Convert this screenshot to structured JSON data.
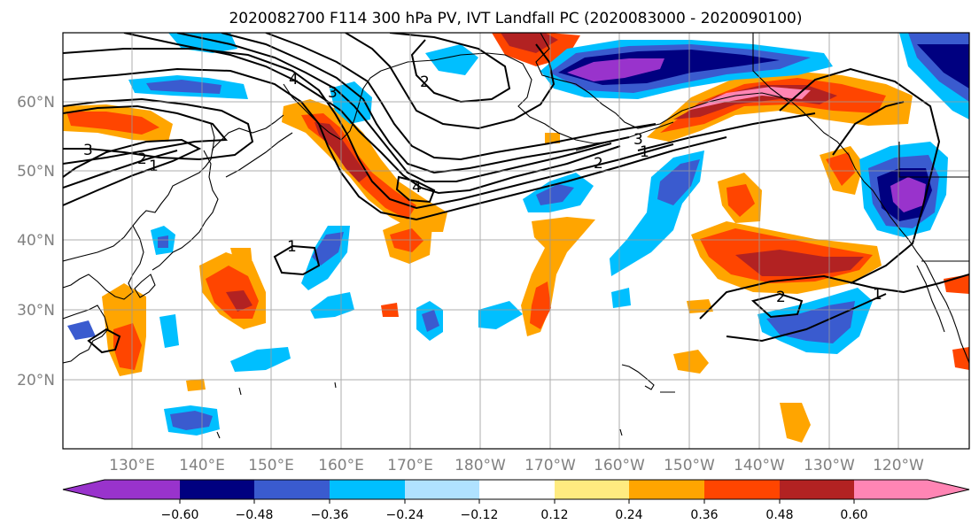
{
  "title": "2020082700 F114 300 hPa PV, IVT Landfall PC (2020083000 - 2020090100)",
  "map": {
    "lat_labels": [
      "60°N",
      "50°N",
      "40°N",
      "30°N",
      "20°N"
    ],
    "lon_labels": [
      "130°E",
      "140°E",
      "150°E",
      "160°E",
      "170°E",
      "180°W",
      "170°W",
      "160°W",
      "150°W",
      "140°W",
      "130°W",
      "120°W"
    ],
    "contour_labels": [
      "3",
      "2",
      "1",
      "4",
      "3",
      "2",
      "4",
      "3",
      "2",
      "1",
      "1",
      "2",
      "1"
    ]
  },
  "colorbar": {
    "colors": [
      "#9933cc",
      "#000080",
      "#3a5bcf",
      "#00bfff",
      "#b0e2ff",
      "#ffffff",
      "#ffeb80",
      "#ffa500",
      "#ff4500",
      "#b22222",
      "#ff85b4"
    ],
    "tick_labels": [
      "−0.60",
      "−0.48",
      "−0.36",
      "−0.24",
      "−0.12",
      "0.12",
      "0.24",
      "0.36",
      "0.48",
      "0.60"
    ]
  }
}
